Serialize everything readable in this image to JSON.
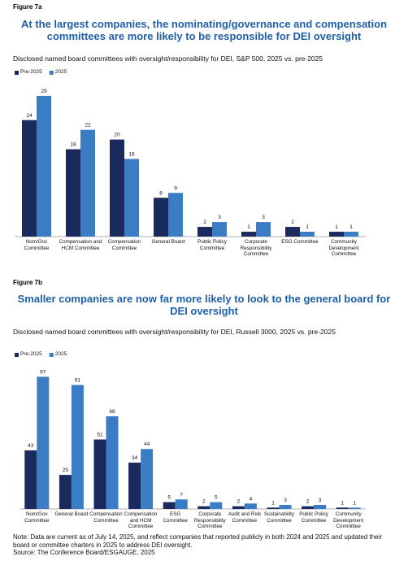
{
  "chart_data": [
    {
      "type": "bar",
      "figure_label": "Figure 7a",
      "title": "At the largest companies, the nominating/governance and compensation committees are more likely to be responsible for DEI oversight",
      "subtitle": "Disclosed named board committees with oversight/responsibility for DEI, S&P 500, 2025 vs. pre-2025",
      "categories": [
        "Nom/Gov Committee",
        "Compensation and HCM Committee",
        "Compensation Committee",
        "General Board",
        "Public Policy Committee",
        "Corporate Responsibility Committee",
        "ESG Committee",
        "Community Development Committee"
      ],
      "series": [
        {
          "name": "Pre-2025",
          "color": "#1b2a5c",
          "values": [
            24,
            18,
            20,
            8,
            2,
            1,
            2,
            1
          ]
        },
        {
          "name": "2025",
          "color": "#3b7dc4",
          "values": [
            29,
            22,
            16,
            9,
            3,
            3,
            1,
            1
          ]
        }
      ],
      "ylim": [
        0,
        32
      ],
      "legend": "top-left"
    },
    {
      "type": "bar",
      "figure_label": "Figure 7b",
      "title": "Smaller companies are now far more likely to look to the general board for DEI oversight",
      "subtitle": "Disclosed named board committees with oversight/responsibility for DEI, Russell 3000, 2025 vs. pre-2025",
      "categories": [
        "Nom/Gov Committee",
        "General Board",
        "Compensation Committee",
        "Compensation and HCM Committee",
        "ESG Committee",
        "Corporate Responsibility Committee",
        "Audit and Risk Committee",
        "Sustainability Committee",
        "Public Policy Committee",
        "Community Development Committee"
      ],
      "series": [
        {
          "name": "Pre-2025",
          "color": "#1b2a5c",
          "values": [
            43,
            25,
            51,
            34,
            5,
            2,
            2,
            1,
            2,
            1
          ]
        },
        {
          "name": "2025",
          "color": "#3b7dc4",
          "values": [
            97,
            91,
            68,
            44,
            7,
            5,
            4,
            3,
            3,
            1
          ]
        }
      ],
      "ylim": [
        0,
        105
      ],
      "legend": "top-left"
    }
  ],
  "note": "Note: Data are current as of July 14, 2025, and reflect companies that reported publicly in both 2024 and 2025 and updated their board or committee charters in 2025 to address DEI oversight.",
  "source": "Source: The Conference Board/ESGAUGE, 2025"
}
